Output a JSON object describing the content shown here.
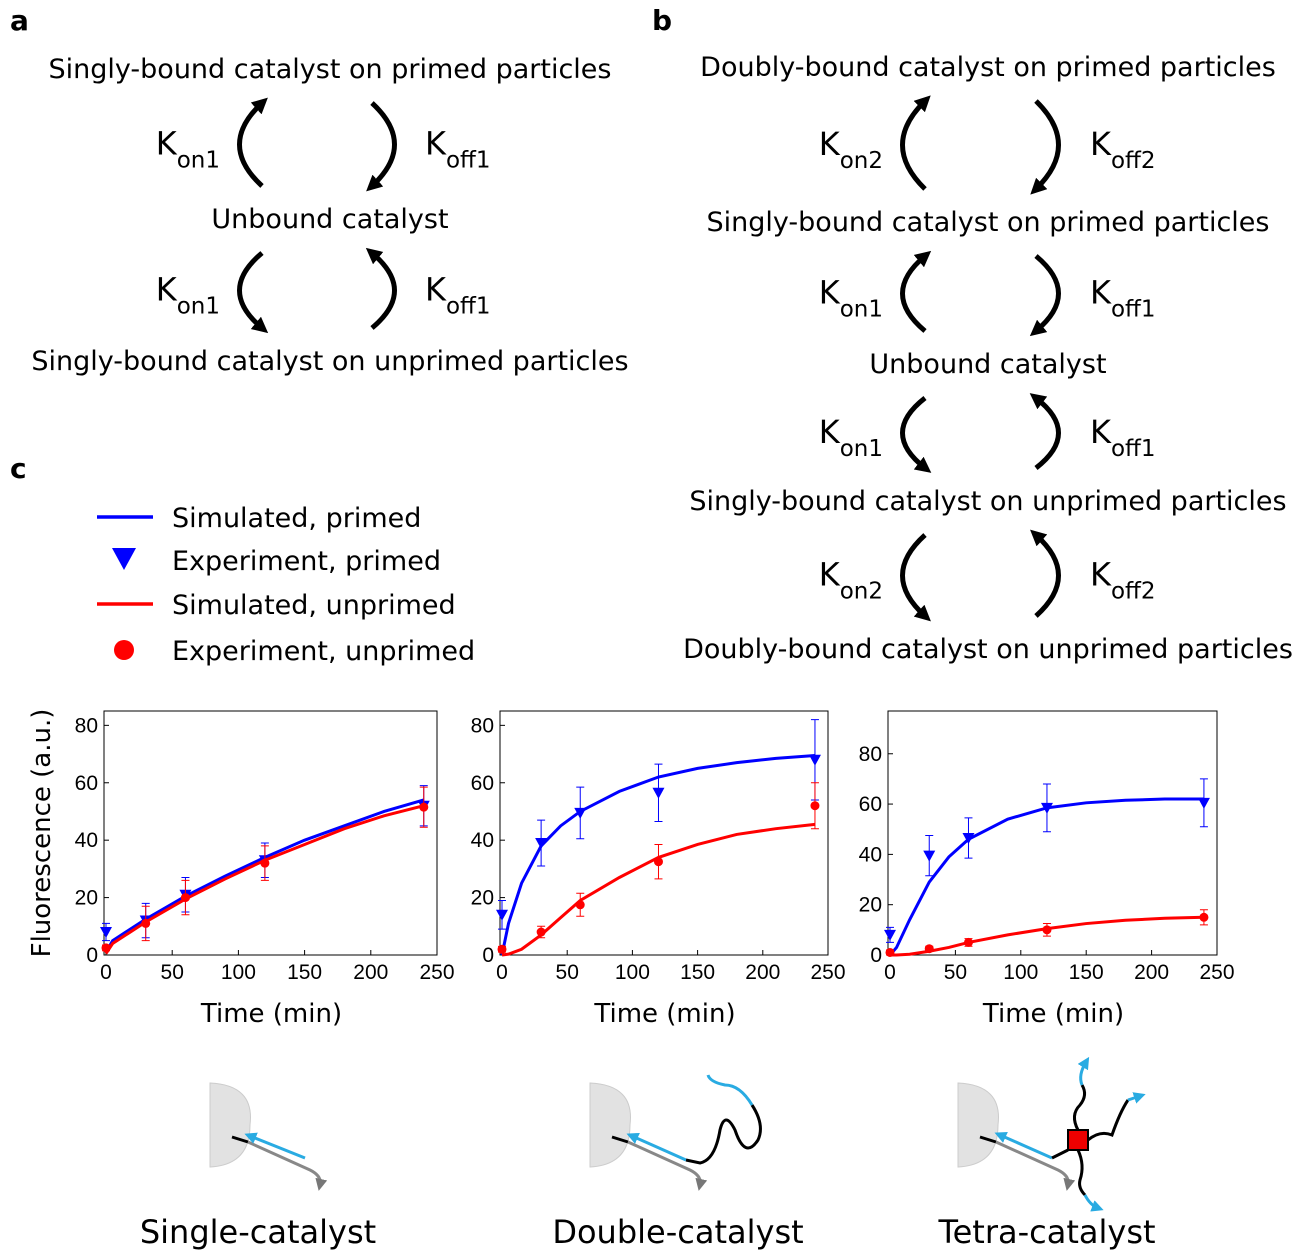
{
  "panels": {
    "a": "a",
    "b": "b",
    "c": "c"
  },
  "diagram_a": {
    "states": [
      "Singly-bound catalyst on primed particles",
      "Unbound catalyst",
      "Singly-bound catalyst on unprimed particles"
    ],
    "pairs": [
      {
        "on": {
          "base": "K",
          "sub": "on1"
        },
        "off": {
          "base": "K",
          "sub": "off1"
        }
      },
      {
        "on": {
          "base": "K",
          "sub": "on1"
        },
        "off": {
          "base": "K",
          "sub": "off1"
        }
      }
    ]
  },
  "diagram_b": {
    "states": [
      "Doubly-bound catalyst on primed particles",
      "Singly-bound catalyst on primed particles",
      "Unbound catalyst",
      "Singly-bound catalyst on unprimed particles",
      "Doubly-bound catalyst on unprimed particles"
    ],
    "pairs": [
      {
        "on": {
          "base": "K",
          "sub": "on2"
        },
        "off": {
          "base": "K",
          "sub": "off2"
        }
      },
      {
        "on": {
          "base": "K",
          "sub": "on1"
        },
        "off": {
          "base": "K",
          "sub": "off1"
        }
      },
      {
        "on": {
          "base": "K",
          "sub": "on1"
        },
        "off": {
          "base": "K",
          "sub": "off1"
        }
      },
      {
        "on": {
          "base": "K",
          "sub": "on2"
        },
        "off": {
          "base": "K",
          "sub": "off2"
        }
      }
    ]
  },
  "chart_data": [
    {
      "type": "line",
      "x_label": "Time (min)",
      "y_label": "Fluorescence (a.u.)",
      "xlim": [
        0,
        250
      ],
      "xticks": [
        0,
        50,
        100,
        150,
        200,
        250
      ],
      "ylim": [
        0,
        85
      ],
      "yticks": [
        0,
        20,
        40,
        60,
        80
      ],
      "x": [
        0,
        30,
        60,
        120,
        240
      ],
      "series": [
        {
          "name": "Simulated, primed",
          "color": "#0000ff",
          "x": [
            0,
            5,
            15,
            30,
            60,
            90,
            120,
            150,
            180,
            210,
            240
          ],
          "values": [
            1,
            5,
            8,
            12.5,
            20.5,
            27.5,
            34,
            40,
            45,
            50,
            54
          ]
        },
        {
          "name": "Experiment, primed",
          "color": "#0000ff",
          "marker": "v",
          "values": [
            8,
            12,
            21,
            33,
            52
          ],
          "errors": [
            3,
            6,
            6,
            6,
            7
          ]
        },
        {
          "name": "Simulated, unprimed",
          "color": "#ff0000",
          "x": [
            0,
            5,
            15,
            30,
            60,
            90,
            120,
            150,
            180,
            210,
            240
          ],
          "values": [
            0.5,
            4,
            7,
            11.5,
            19.5,
            26.5,
            33,
            38.5,
            44,
            48.5,
            52
          ]
        },
        {
          "name": "Experiment, unprimed",
          "color": "#ff0000",
          "marker": "o",
          "values": [
            2.5,
            11,
            20,
            32,
            51.5
          ],
          "errors": [
            1,
            6,
            6,
            6,
            7
          ]
        }
      ]
    },
    {
      "type": "line",
      "x_label": "Time (min)",
      "xlim": [
        0,
        250
      ],
      "xticks": [
        0,
        50,
        100,
        150,
        200,
        250
      ],
      "ylim": [
        0,
        85
      ],
      "yticks": [
        0,
        20,
        40,
        60,
        80
      ],
      "x": [
        0,
        30,
        60,
        120,
        240
      ],
      "series": [
        {
          "color": "#0000ff",
          "x": [
            0,
            5,
            15,
            30,
            45,
            60,
            90,
            120,
            150,
            180,
            210,
            240
          ],
          "values": [
            0,
            11,
            25,
            38,
            45,
            50,
            57,
            62,
            65,
            67,
            68.5,
            69.5
          ]
        },
        {
          "color": "#0000ff",
          "marker": "v",
          "values": [
            14,
            39,
            49.5,
            56.5,
            68
          ],
          "errors": [
            5,
            8,
            9,
            10,
            14
          ]
        },
        {
          "color": "#ff0000",
          "x": [
            0,
            5,
            15,
            30,
            45,
            60,
            90,
            120,
            150,
            180,
            210,
            240
          ],
          "values": [
            0,
            0.3,
            2,
            7,
            13,
            19,
            27,
            34,
            38.5,
            42,
            44,
            45.5
          ]
        },
        {
          "color": "#ff0000",
          "marker": "o",
          "values": [
            2,
            8,
            17.5,
            32.5,
            52
          ],
          "errors": [
            1,
            2,
            4,
            6,
            8
          ]
        }
      ]
    },
    {
      "type": "line",
      "x_label": "Time (min)",
      "xlim": [
        0,
        250
      ],
      "xticks": [
        0,
        50,
        100,
        150,
        200,
        250
      ],
      "ylim": [
        0,
        97
      ],
      "yticks": [
        0,
        20,
        40,
        60,
        80
      ],
      "x": [
        0,
        30,
        60,
        120,
        240
      ],
      "series": [
        {
          "color": "#0000ff",
          "x": [
            0,
            5,
            15,
            30,
            45,
            60,
            90,
            120,
            150,
            180,
            210,
            240
          ],
          "values": [
            0,
            3,
            14,
            29,
            39,
            46,
            54,
            58.5,
            60.5,
            61.5,
            62,
            62
          ]
        },
        {
          "color": "#0000ff",
          "marker": "v",
          "values": [
            8,
            39.5,
            46.5,
            58.5,
            60.5
          ],
          "errors": [
            3,
            8,
            8,
            9.5,
            9.5
          ]
        },
        {
          "color": "#ff0000",
          "x": [
            0,
            5,
            15,
            30,
            45,
            60,
            90,
            120,
            150,
            180,
            210,
            240
          ],
          "values": [
            0,
            0,
            0.3,
            1.5,
            3,
            5,
            8,
            10.5,
            12.5,
            13.8,
            14.6,
            15
          ]
        },
        {
          "color": "#ff0000",
          "marker": "o",
          "values": [
            1,
            2.5,
            5,
            10,
            15
          ],
          "errors": [
            1,
            1,
            1.5,
            2.5,
            3
          ]
        }
      ]
    }
  ],
  "captions": [
    "Single-catalyst",
    "Double-catalyst",
    "Tetra-catalyst"
  ]
}
